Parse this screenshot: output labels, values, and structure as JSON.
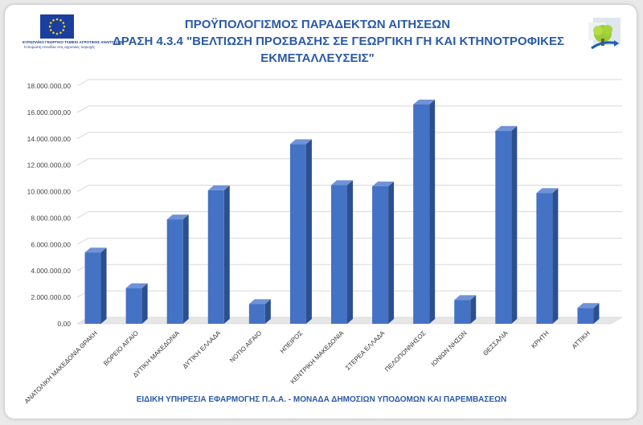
{
  "header": {
    "title_lines": [
      "ΠΡΟΫΠΟΛΟΓΙΣΜΟΣ ΠΑΡΑΔΕΚΤΩΝ ΑΙΤΗΣΕΩΝ",
      "ΔΡΑΣΗ 4.3.4 \"ΒΕΛΤΙΩΣΗ ΠΡΟΣΒΑΣΗΣ ΣΕ ΓΕΩΡΓΙΚΗ ΓΗ ΚΑΙ ΚΤΗΝΟΤΡΟΦΙΚΕΣ",
      "ΕΚΜΕΤΑΛΛΕΥΣΕΙΣ\""
    ],
    "eu_logo_text": [
      "ΕΥΡΩΠΑΪΚΟ ΓΕΩΡΓΙΚΟ ΤΑΜΕΙΟ ΑΓΡΟΤΙΚΗΣ ΑΝΑΠΤΥΞΗΣ",
      "Η Ευρώπη επενδύει στις αγροτικές περιοχές"
    ]
  },
  "footer": {
    "text": "ΕΙΔΙΚΗ ΥΠΗΡΕΣΙΑ ΕΦΑΡΜΟΓΗΣ Π.Α.Α. - ΜΟΝΑΔΑ ΔΗΜΟΣΙΩΝ ΥΠΟΔΟΜΩΝ ΚΑΙ ΠΑΡΕΜΒΑΣΕΩΝ"
  },
  "colors": {
    "bar_front": "#4472c4",
    "bar_side": "#2c4f8f",
    "bar_top": "#6f93d6",
    "title": "#2b5aa6",
    "grid": "#d9d9d9"
  },
  "icons": [
    "eu-flag-icon",
    "agriculture-logo-icon"
  ],
  "chart_data": {
    "type": "bar",
    "categories": [
      "ΑΝΑΤΟΛΙΚΗ ΜΑΚΕΔΟΝΙΑ ΘΡΑΚΗ",
      "ΒΟΡΕΙΟ ΑΙΓΑΙΟ",
      "ΔΥΤΙΚΗ ΜΑΚΕΔΟΝΙΑ",
      "ΔΥΤΙΚΗ ΕΛΛΑΔΑ",
      "ΝΟΤΙΟ ΑΙΓΑΙΟ",
      "ΗΠΕΙΡΟΣ",
      "ΚΕΝΤΡΙΚΗ ΜΑΚΕΔΟΝΙΑ",
      "ΣΤΕΡΕΑ ΕΛΛΑΔΑ",
      "ΠΕΛΟΠΟΝΝΗΣΟΣ",
      "ΙΟΝΙΩΝ ΝΗΣΩΝ",
      "ΘΕΣΣΑΛΙΑ",
      "ΚΡΗΤΗ",
      "ΑΤΤΙΚΗ"
    ],
    "values": [
      5400000,
      2700000,
      7900000,
      10100000,
      1500000,
      13600000,
      10500000,
      10400000,
      16600000,
      1800000,
      14600000,
      9900000,
      1200000
    ],
    "ylim": [
      0,
      18000000
    ],
    "yticks": [
      0,
      2000000,
      4000000,
      6000000,
      8000000,
      10000000,
      12000000,
      14000000,
      16000000,
      18000000
    ],
    "ytick_labels": [
      "0,00",
      "2.000.000,00",
      "4.000.000,00",
      "6.000.000,00",
      "8.000.000,00",
      "10.000.000,00",
      "12.000.000,00",
      "14.000.000,00",
      "16.000.000,00",
      "18.000.000,00"
    ],
    "title": "",
    "xlabel": "",
    "ylabel": "",
    "grid": true,
    "legend": "none"
  }
}
